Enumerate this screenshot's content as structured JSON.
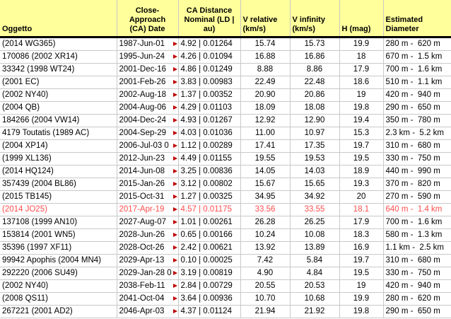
{
  "colors": {
    "header_bg": "#ffff9c",
    "grid": "#c9c9c9",
    "marker": "#c00000",
    "highlight_text": "#ff4d4d",
    "text": "#000000"
  },
  "header": {
    "columns": [
      {
        "id": "object",
        "label": "Oggetto"
      },
      {
        "id": "date",
        "label": "Close-\nApproach\n(CA) Date"
      },
      {
        "id": "distance",
        "label": "CA Distance\nNominal (LD |\nau)"
      },
      {
        "id": "v_relative",
        "label": "V relative\n(km/s)"
      },
      {
        "id": "v_infinity",
        "label": "V infinity\n(km/s)"
      },
      {
        "id": "h_mag",
        "label": "H (mag)"
      },
      {
        "id": "diameter",
        "label": "Estimated\nDiameter"
      }
    ]
  },
  "rows": [
    {
      "object": "(2014 WG365)",
      "date": "1987-Jun-01",
      "distance": "4.92 | 0.01264",
      "v_relative": "15.74",
      "v_infinity": "15.73",
      "h_mag": "19.9",
      "diameter": "280 m -  620 m",
      "highlighted": false
    },
    {
      "object": "170086 (2002 XR14)",
      "date": "1995-Jun-24",
      "distance": "4.26 | 0.01094",
      "v_relative": "16.88",
      "v_infinity": "16.86",
      "h_mag": "18",
      "diameter": "670 m -  1.5 km",
      "highlighted": false
    },
    {
      "object": "33342 (1998 WT24)",
      "date": "2001-Dec-16",
      "distance": "4.86 | 0.01249",
      "v_relative": "8.88",
      "v_infinity": "8.86",
      "h_mag": "17.9",
      "diameter": "700 m -  1.6 km",
      "highlighted": false
    },
    {
      "object": "(2001 EC)",
      "date": "2001-Feb-26",
      "distance": "3.83 | 0.00983",
      "v_relative": "22.49",
      "v_infinity": "22.48",
      "h_mag": "18.6",
      "diameter": "510 m -  1.1 km",
      "highlighted": false
    },
    {
      "object": "(2002 NY40)",
      "date": "2002-Aug-18",
      "distance": "1.37 | 0.00352",
      "v_relative": "20.90",
      "v_infinity": "20.86",
      "h_mag": "19",
      "diameter": "420 m -  940 m",
      "highlighted": false
    },
    {
      "object": "(2004 QB)",
      "date": "2004-Aug-06",
      "distance": "4.29 | 0.01103",
      "v_relative": "18.09",
      "v_infinity": "18.08",
      "h_mag": "19.8",
      "diameter": "290 m -  650 m",
      "highlighted": false
    },
    {
      "object": "184266 (2004 VW14)",
      "date": "2004-Dec-24",
      "distance": "4.93 | 0.01267",
      "v_relative": "12.92",
      "v_infinity": "12.90",
      "h_mag": "19.4",
      "diameter": "350 m -  780 m",
      "highlighted": false
    },
    {
      "object": "4179 Toutatis (1989 AC)",
      "date": "2004-Sep-29",
      "distance": "4.03 | 0.01036",
      "v_relative": "11.00",
      "v_infinity": "10.97",
      "h_mag": "15.3",
      "diameter": "2.3 km -  5.2 km",
      "highlighted": false
    },
    {
      "object": "(2004 XP14)",
      "date": "2006-Jul-03 0",
      "distance": "1.12 | 0.00289",
      "v_relative": "17.41",
      "v_infinity": "17.35",
      "h_mag": "19.7",
      "diameter": "310 m -  680 m",
      "highlighted": false
    },
    {
      "object": "(1999 XL136)",
      "date": "2012-Jun-23",
      "distance": "4.49 | 0.01155",
      "v_relative": "19.55",
      "v_infinity": "19.53",
      "h_mag": "19.5",
      "diameter": "330 m -  750 m",
      "highlighted": false
    },
    {
      "object": "(2014 HQ124)",
      "date": "2014-Jun-08",
      "distance": "3.25 | 0.00836",
      "v_relative": "14.05",
      "v_infinity": "14.03",
      "h_mag": "18.9",
      "diameter": "440 m -  990 m",
      "highlighted": false
    },
    {
      "object": "357439 (2004 BL86)",
      "date": "2015-Jan-26",
      "distance": "3.12 | 0.00802",
      "v_relative": "15.67",
      "v_infinity": "15.65",
      "h_mag": "19.3",
      "diameter": "370 m -  820 m",
      "highlighted": false
    },
    {
      "object": "(2015 TB145)",
      "date": "2015-Oct-31",
      "distance": "1.27 | 0.00325",
      "v_relative": "34.95",
      "v_infinity": "34.92",
      "h_mag": "20",
      "diameter": "270 m -  590 m",
      "highlighted": false
    },
    {
      "object": "(2014 JO25)",
      "date": "2017-Apr-19",
      "distance": "4.57 | 0.01175",
      "v_relative": "33.56",
      "v_infinity": "33.55",
      "h_mag": "18.1",
      "diameter": "640 m -  1.4 km",
      "highlighted": true
    },
    {
      "object": "137108 (1999 AN10)",
      "date": "2027-Aug-07",
      "distance": "1.01 | 0.00261",
      "v_relative": "26.28",
      "v_infinity": "26.25",
      "h_mag": "17.9",
      "diameter": "700 m -  1.6 km",
      "highlighted": false
    },
    {
      "object": "153814 (2001 WN5)",
      "date": "2028-Jun-26",
      "distance": "0.65 | 0.00166",
      "v_relative": "10.24",
      "v_infinity": "10.08",
      "h_mag": "18.3",
      "diameter": "580 m -  1.3 km",
      "highlighted": false
    },
    {
      "object": "35396 (1997 XF11)",
      "date": "2028-Oct-26",
      "distance": "2.42 | 0.00621",
      "v_relative": "13.92",
      "v_infinity": "13.89",
      "h_mag": "16.9",
      "diameter": "1.1 km -  2.5 km",
      "highlighted": false
    },
    {
      "object": "99942 Apophis (2004 MN4)",
      "date": "2029-Apr-13",
      "distance": "0.10 | 0.00025",
      "v_relative": "7.42",
      "v_infinity": "5.84",
      "h_mag": "19.7",
      "diameter": "310 m -  680 m",
      "highlighted": false
    },
    {
      "object": "292220 (2006 SU49)",
      "date": "2029-Jan-28 0",
      "distance": "3.19 | 0.00819",
      "v_relative": "4.90",
      "v_infinity": "4.84",
      "h_mag": "19.5",
      "diameter": "330 m -  750 m",
      "highlighted": false
    },
    {
      "object": "(2002 NY40)",
      "date": "2038-Feb-11",
      "distance": "2.84 | 0.00729",
      "v_relative": "20.55",
      "v_infinity": "20.53",
      "h_mag": "19",
      "diameter": "420 m -  940 m",
      "highlighted": false
    },
    {
      "object": "(2008 QS11)",
      "date": "2041-Oct-04",
      "distance": "3.64 | 0.00936",
      "v_relative": "10.70",
      "v_infinity": "10.68",
      "h_mag": "19.9",
      "diameter": "280 m -  620 m",
      "highlighted": false
    },
    {
      "object": "267221 (2001 AD2)",
      "date": "2046-Apr-03",
      "distance": "4.37 | 0.01124",
      "v_relative": "21.94",
      "v_infinity": "21.92",
      "h_mag": "19.8",
      "diameter": "290 m -  650 m",
      "highlighted": false
    }
  ]
}
